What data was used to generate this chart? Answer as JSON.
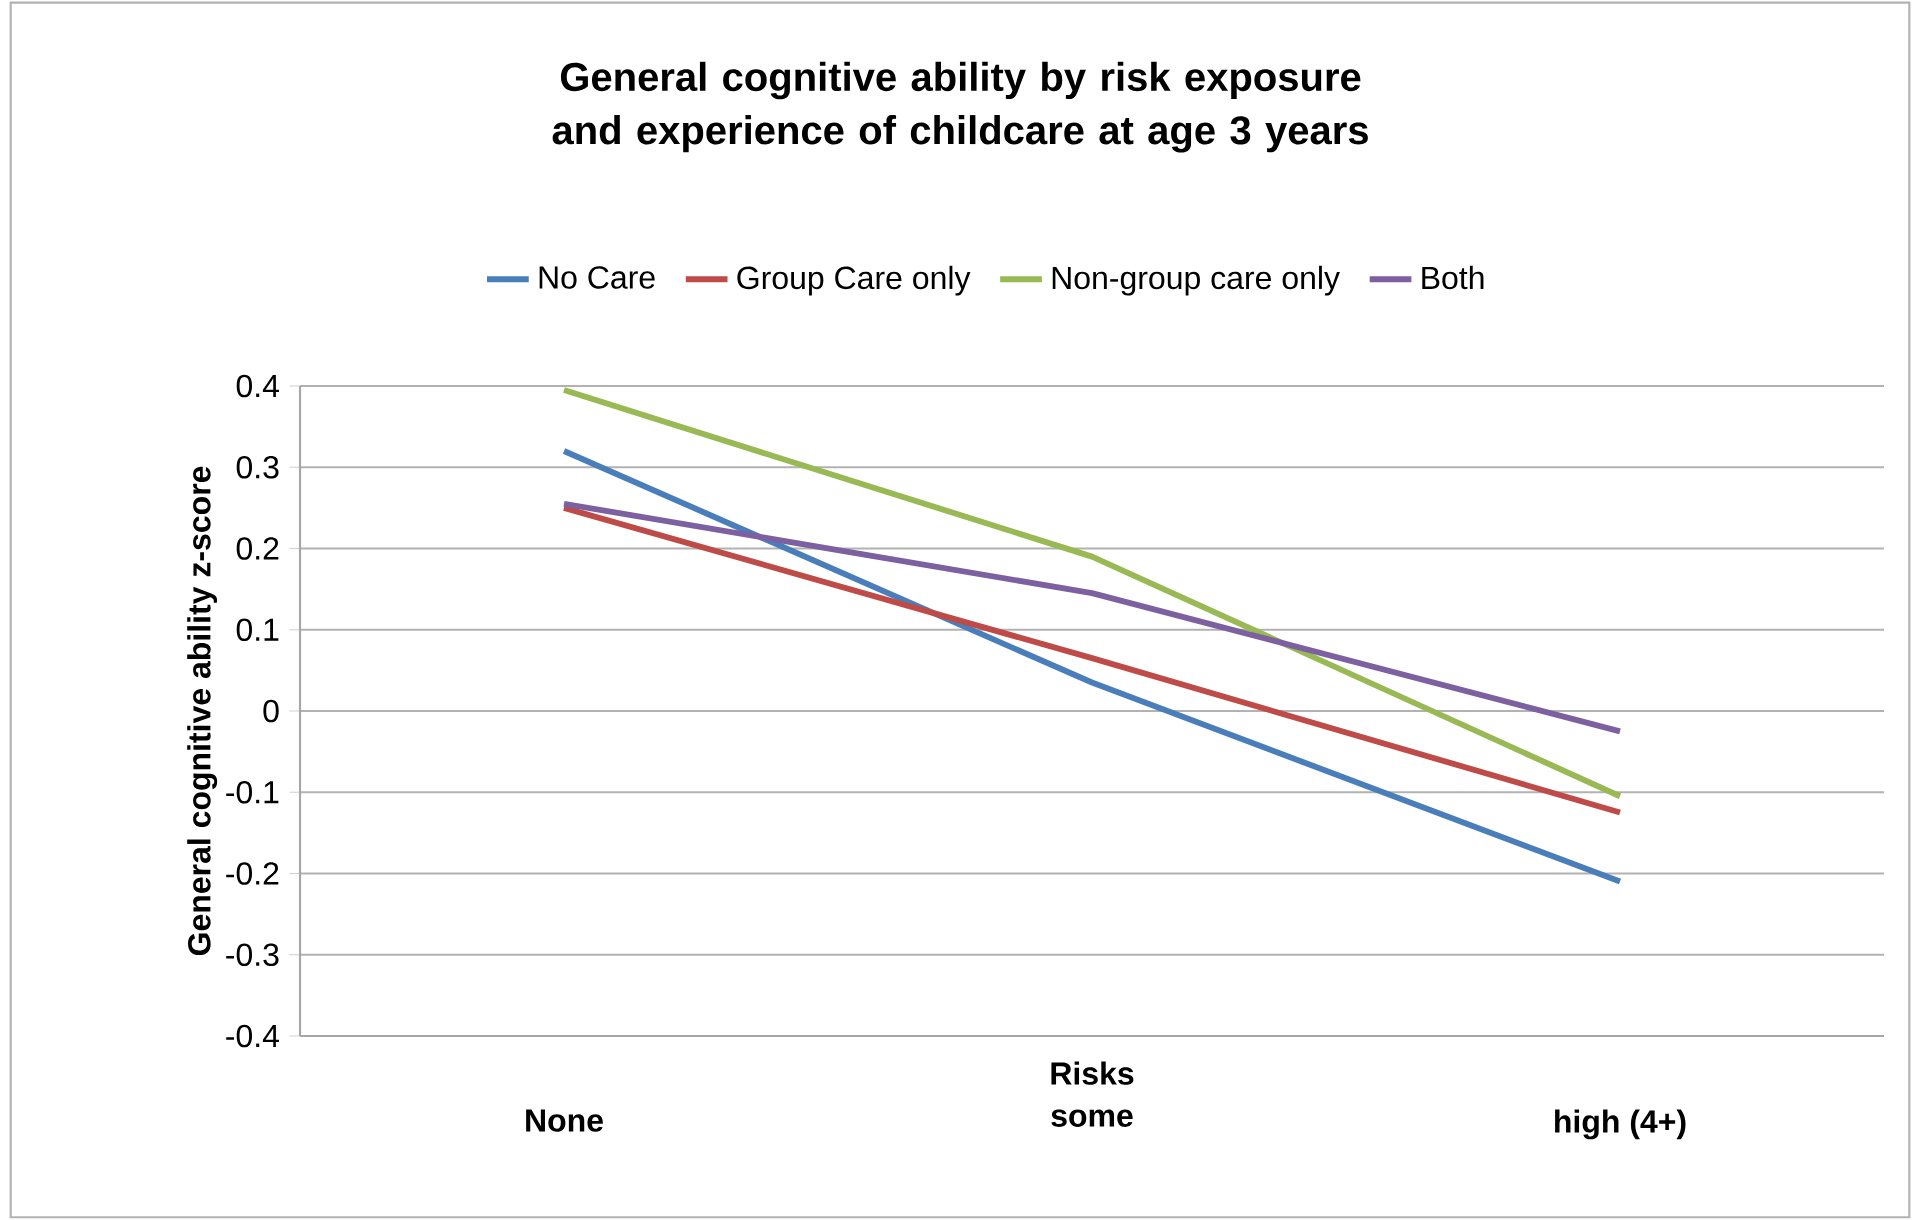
{
  "chart_data": {
    "type": "line",
    "title": "General cognitive ability by risk exposure and experience of childcare at age 3 years",
    "xlabel": "Risks",
    "ylabel": "General cognitive ability z-score",
    "categories": [
      "None",
      "some",
      "high (4+)"
    ],
    "series": [
      {
        "name": "No Care",
        "color": "#4a7ebb",
        "values": [
          0.32,
          0.035,
          -0.21
        ]
      },
      {
        "name": "Group Care only",
        "color": "#be4b48",
        "values": [
          0.25,
          0.065,
          -0.125
        ]
      },
      {
        "name": "Non-group care only",
        "color": "#98b954",
        "values": [
          0.395,
          0.19,
          -0.105
        ]
      },
      {
        "name": "Both",
        "color": "#7d60a0",
        "values": [
          0.255,
          0.145,
          -0.025
        ]
      }
    ],
    "ylim": [
      -0.4,
      0.4
    ],
    "yticks": [
      -0.4,
      -0.3,
      -0.2,
      -0.1,
      0,
      0.1,
      0.2,
      0.3,
      0.4
    ],
    "grid": "y",
    "legend": "top",
    "marker": "none",
    "line_style": "solid"
  }
}
